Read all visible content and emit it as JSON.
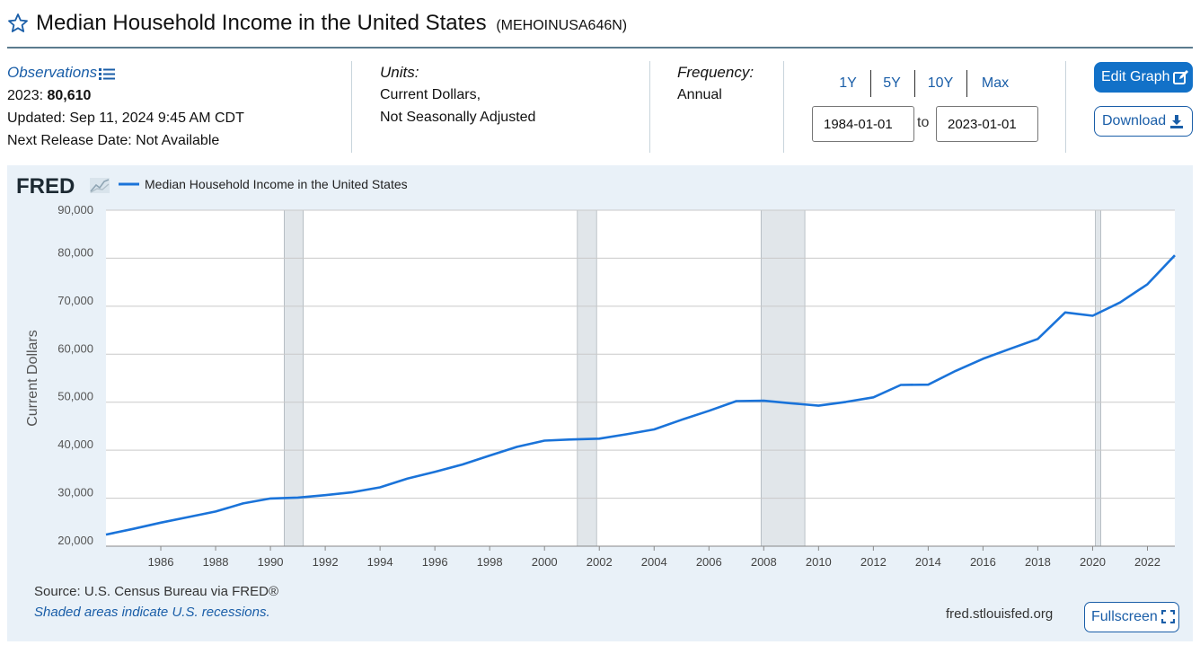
{
  "header": {
    "title": "Median Household Income in the United States",
    "series_id": "(MEHOINUSA646N)"
  },
  "meta": {
    "observations_label": "Observations",
    "latest_year": "2023:",
    "latest_value": "80,610",
    "updated": "Updated: Sep 11, 2024 9:45 AM CDT",
    "next_release": "Next Release Date: Not Available",
    "units_label": "Units:",
    "units_line1": "Current Dollars,",
    "units_line2": "Not Seasonally Adjusted",
    "frequency_label": "Frequency:",
    "frequency_value": "Annual"
  },
  "range": {
    "buttons": [
      "1Y",
      "5Y",
      "10Y",
      "Max"
    ],
    "start": "1984-01-01",
    "to_label": "to",
    "end": "2023-01-01"
  },
  "actions": {
    "edit_graph": "Edit Graph",
    "download": "Download",
    "fullscreen": "Fullscreen"
  },
  "footer": {
    "source": "Source: U.S. Census Bureau via FRED®",
    "recession_note": "Shaded areas indicate U.S. recessions.",
    "url": "fred.stlouisfed.org"
  },
  "colors": {
    "line": "#1a73d9",
    "recession": "#e1e6ea",
    "panel": "#e9f1f8",
    "accent": "#1271c8"
  },
  "chart_data": {
    "type": "line",
    "brand": "FRED",
    "title": "",
    "xlabel": "",
    "ylabel": "Current Dollars",
    "legend": "top-left",
    "grid": true,
    "xlim": [
      1984,
      2023
    ],
    "ylim": [
      20000,
      90000
    ],
    "y_ticks": [
      20000,
      30000,
      40000,
      50000,
      60000,
      70000,
      80000,
      90000
    ],
    "y_tick_labels": [
      "20,000",
      "30,000",
      "40,000",
      "50,000",
      "60,000",
      "70,000",
      "80,000",
      "90,000"
    ],
    "x_ticks": [
      1986,
      1988,
      1990,
      1992,
      1994,
      1996,
      1998,
      2000,
      2002,
      2004,
      2006,
      2008,
      2010,
      2012,
      2014,
      2016,
      2018,
      2020,
      2022
    ],
    "x_tick_labels": [
      "1986",
      "1988",
      "1990",
      "1992",
      "1994",
      "1996",
      "1998",
      "2000",
      "2002",
      "2004",
      "2006",
      "2008",
      "2010",
      "2012",
      "2014",
      "2016",
      "2018",
      "2020",
      "2022"
    ],
    "recessions": [
      [
        1990.5,
        1991.2
      ],
      [
        2001.2,
        2001.9
      ],
      [
        2007.9,
        2009.5
      ],
      [
        2020.1,
        2020.3
      ]
    ],
    "series": [
      {
        "name": "Median Household Income in the United States",
        "x": [
          1984,
          1985,
          1986,
          1987,
          1988,
          1989,
          1990,
          1991,
          1992,
          1993,
          1994,
          1995,
          1996,
          1997,
          1998,
          1999,
          2000,
          2001,
          2002,
          2003,
          2004,
          2005,
          2006,
          2007,
          2008,
          2009,
          2010,
          2011,
          2012,
          2013,
          2014,
          2015,
          2016,
          2017,
          2018,
          2019,
          2020,
          2021,
          2022,
          2023
        ],
        "values": [
          22420,
          23620,
          24900,
          26060,
          27230,
          28910,
          29940,
          30130,
          30640,
          31240,
          32260,
          34080,
          35490,
          37010,
          38890,
          40700,
          41990,
          42230,
          42410,
          43320,
          44330,
          46330,
          48200,
          50230,
          50300,
          49780,
          49280,
          50050,
          51020,
          53590,
          53660,
          56520,
          59040,
          61140,
          63180,
          68700,
          68010,
          70780,
          74580,
          80610
        ]
      }
    ]
  }
}
